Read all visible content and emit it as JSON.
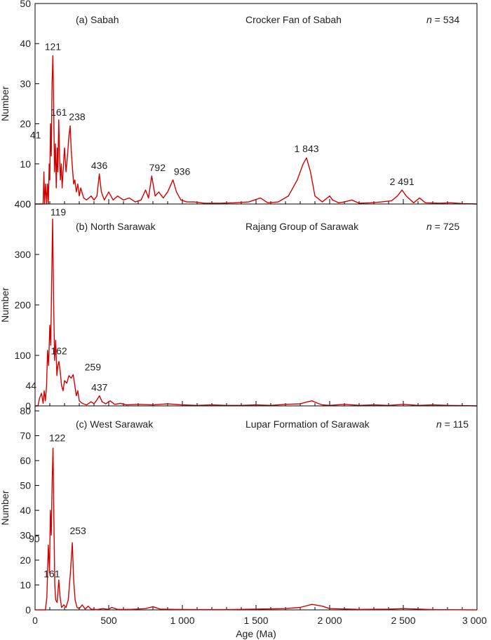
{
  "figure": {
    "xlabel": "Age (Ma)",
    "xlim": [
      0,
      3000
    ],
    "xticks": [
      0,
      500,
      1000,
      1500,
      2000,
      2500,
      3000
    ],
    "xtick_labels": [
      "0",
      "500",
      "1 000",
      "1 500",
      "2 000",
      "2 500",
      "3 000"
    ],
    "line_color": "#d40000"
  },
  "chart_data": [
    {
      "type": "line",
      "panel_label": "(a) Sabah",
      "title": "Crocker Fan of Sabah",
      "n_prefix": "n",
      "n_value": " = 534",
      "ylabel": "Number",
      "ylim": [
        0,
        50
      ],
      "yticks": [
        0,
        10,
        20,
        30,
        40,
        50
      ],
      "xlim": [
        0,
        3000
      ],
      "peaks": [
        {
          "x": 41,
          "y": 9,
          "label": "41"
        },
        {
          "x": 121,
          "y": 37,
          "label": "121"
        },
        {
          "x": 161,
          "y": 21,
          "label": "161"
        },
        {
          "x": 238,
          "y": 19.5,
          "label": "238"
        },
        {
          "x": 436,
          "y": 7.5,
          "label": "436"
        },
        {
          "x": 792,
          "y": 7,
          "label": "792"
        },
        {
          "x": 936,
          "y": 6,
          "label": "936"
        },
        {
          "x": 1843,
          "y": 11.5,
          "label": "1 843"
        },
        {
          "x": 2491,
          "y": 3.5,
          "label": "2 491"
        }
      ],
      "series": [
        {
          "x": [
            0,
            55,
            60,
            65,
            72,
            78,
            85,
            90,
            96,
            100,
            105,
            110,
            115,
            121,
            126,
            132,
            138,
            144,
            150,
            155,
            161,
            166,
            172,
            178,
            184,
            190,
            200,
            210,
            220,
            230,
            238,
            246,
            254,
            262,
            270,
            280,
            290,
            300,
            310,
            330,
            350,
            380,
            400,
            420,
            436,
            450,
            470,
            500,
            530,
            560,
            600,
            640,
            680,
            720,
            750,
            770,
            792,
            815,
            840,
            870,
            900,
            936,
            960,
            990,
            1030,
            1080,
            1150,
            1250,
            1350,
            1450,
            1530,
            1580,
            1650,
            1720,
            1780,
            1820,
            1843,
            1870,
            1900,
            1950,
            2000,
            2020,
            2060,
            2100,
            2150,
            2200,
            2280,
            2350,
            2420,
            2460,
            2491,
            2520,
            2570,
            2610,
            2650,
            2750,
            2820,
            2900,
            3000
          ],
          "y": [
            0,
            0,
            8,
            0,
            5,
            0,
            5,
            0,
            10,
            6,
            20,
            12,
            30,
            37,
            25,
            8,
            15,
            4,
            14,
            8,
            21,
            12,
            6,
            10,
            4,
            8,
            14,
            8,
            12,
            17,
            19.5,
            13,
            9,
            5,
            6,
            3,
            5,
            2,
            4,
            1.5,
            1,
            2,
            1,
            2,
            7.5,
            3,
            1,
            3,
            1,
            2,
            1,
            1.5,
            0.5,
            1,
            3.5,
            1.5,
            7,
            2,
            3,
            1.5,
            3,
            6,
            3,
            1,
            0.5,
            0.5,
            0.2,
            0.2,
            0.3,
            0.5,
            1.5,
            0.3,
            0.5,
            2,
            6,
            10,
            11.5,
            8,
            2,
            0.5,
            2,
            1,
            0.3,
            0.5,
            1,
            0.2,
            0.3,
            0.5,
            0.8,
            2,
            3.5,
            2,
            0.3,
            1.5,
            0.3,
            0.2,
            0.3,
            0.1,
            0
          ]
        }
      ]
    },
    {
      "type": "line",
      "panel_label": "(b) North Sarawak",
      "title": "Rajang Group of Sarawak",
      "n_prefix": "n",
      "n_value": " = 725",
      "ylabel": "Number",
      "ylim": [
        0,
        400
      ],
      "yticks": [
        0,
        100,
        200,
        300,
        400
      ],
      "xlim": [
        0,
        3000
      ],
      "peaks": [
        {
          "x": 44,
          "y": 25,
          "label": "44"
        },
        {
          "x": 119,
          "y": 370,
          "label": "119"
        },
        {
          "x": 162,
          "y": 88,
          "label": "162"
        },
        {
          "x": 259,
          "y": 62,
          "label": "259"
        },
        {
          "x": 437,
          "y": 20,
          "label": "437"
        }
      ],
      "series": [
        {
          "x": [
            0,
            20,
            30,
            44,
            55,
            62,
            70,
            78,
            85,
            92,
            100,
            106,
            112,
            119,
            126,
            133,
            140,
            148,
            155,
            162,
            170,
            180,
            190,
            200,
            215,
            230,
            245,
            259,
            270,
            280,
            290,
            300,
            320,
            350,
            380,
            400,
            420,
            437,
            455,
            480,
            510,
            540,
            580,
            620,
            700,
            800,
            900,
            1000,
            1100,
            1200,
            1300,
            1400,
            1500,
            1600,
            1700,
            1800,
            1850,
            1880,
            1920,
            1950,
            2000,
            2100,
            2200,
            2300,
            2400,
            2500,
            2600,
            2700,
            2800,
            2900,
            3000
          ],
          "y": [
            0,
            0,
            15,
            25,
            5,
            30,
            10,
            40,
            110,
            80,
            160,
            120,
            230,
            370,
            200,
            90,
            130,
            60,
            80,
            88,
            70,
            40,
            30,
            50,
            45,
            60,
            55,
            62,
            40,
            20,
            30,
            10,
            5,
            2,
            8,
            4,
            12,
            20,
            8,
            4,
            10,
            3,
            5,
            2,
            3,
            2,
            4,
            2,
            1,
            2,
            1,
            1,
            2,
            1,
            3,
            4,
            8,
            10,
            5,
            2,
            1,
            3,
            1,
            2,
            1,
            3,
            1,
            2,
            1,
            0.5,
            0
          ]
        }
      ]
    },
    {
      "type": "line",
      "panel_label": "(c) West Sarawak",
      "title": "Lupar Formation of Sarawak",
      "n_prefix": "n",
      "n_value": " = 115",
      "ylabel": "Number",
      "ylim": [
        0,
        82
      ],
      "yticks": [
        0,
        10,
        20,
        30,
        40,
        50,
        60,
        70,
        80
      ],
      "xlim": [
        0,
        3000
      ],
      "peaks": [
        {
          "x": 90,
          "y": 26,
          "label": "90"
        },
        {
          "x": 122,
          "y": 65,
          "label": "122"
        },
        {
          "x": 161,
          "y": 12,
          "label": "161"
        },
        {
          "x": 253,
          "y": 27,
          "label": "253"
        }
      ],
      "series": [
        {
          "x": [
            0,
            70,
            80,
            90,
            98,
            104,
            110,
            116,
            122,
            128,
            134,
            140,
            150,
            161,
            170,
            180,
            195,
            210,
            225,
            240,
            253,
            262,
            272,
            285,
            300,
            320,
            340,
            360,
            380,
            420,
            460,
            500,
            520,
            560,
            650,
            750,
            780,
            800,
            850,
            950,
            1100,
            1300,
            1500,
            1700,
            1800,
            1880,
            1950,
            2000,
            2200,
            2400,
            2500,
            2700,
            3000
          ],
          "y": [
            0,
            0,
            5,
            26,
            15,
            40,
            30,
            52,
            65,
            35,
            10,
            4,
            3,
            12,
            5,
            1,
            2,
            1,
            4,
            15,
            27,
            12,
            4,
            1,
            0.5,
            2,
            0.3,
            1.5,
            0.3,
            0.1,
            0.5,
            0.2,
            1,
            0.2,
            0.2,
            0.5,
            1,
            1.3,
            0.3,
            0.2,
            0.1,
            0.1,
            0.3,
            0.5,
            1,
            2.2,
            1.5,
            0.5,
            0.2,
            0.3,
            0.5,
            0.1,
            0
          ]
        }
      ]
    }
  ]
}
